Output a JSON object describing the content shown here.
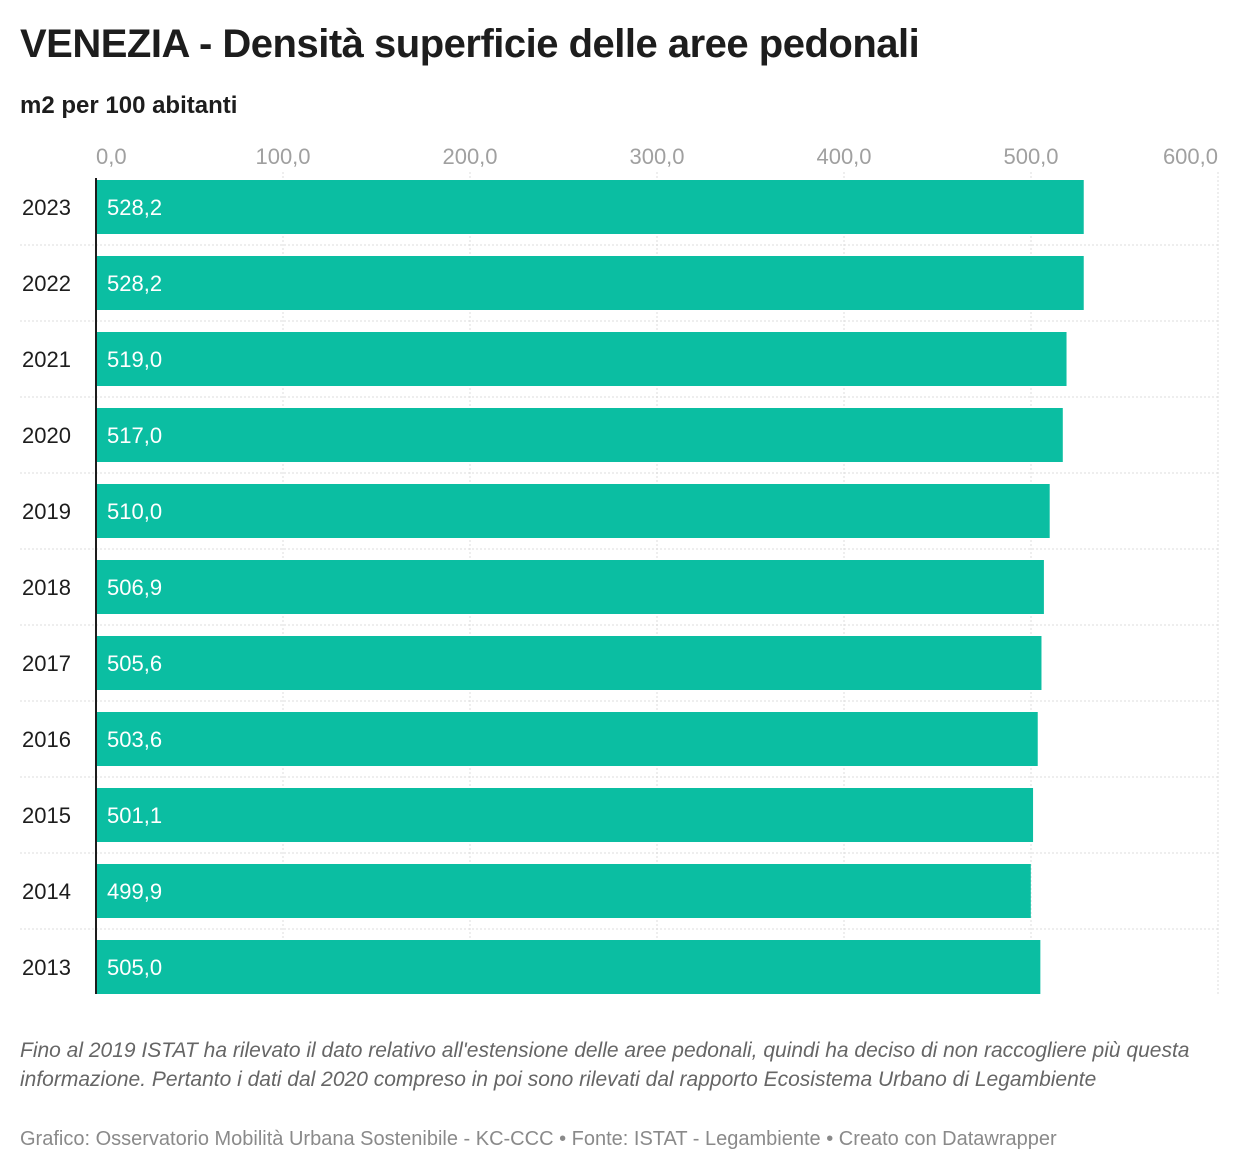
{
  "header": {
    "title": "VENEZIA - Densità superficie delle aree pedonali",
    "subtitle": "m2 per 100 abitanti"
  },
  "chart_data": {
    "type": "bar",
    "orientation": "horizontal",
    "categories": [
      "2023",
      "2022",
      "2021",
      "2020",
      "2019",
      "2018",
      "2017",
      "2016",
      "2015",
      "2014",
      "2013"
    ],
    "values": [
      528.2,
      528.2,
      519.0,
      517.0,
      510.0,
      506.9,
      505.6,
      503.6,
      501.1,
      499.9,
      505.0
    ],
    "value_labels": [
      "528,2",
      "528,2",
      "519,0",
      "517,0",
      "510,0",
      "506,9",
      "505,6",
      "503,6",
      "501,1",
      "499,9",
      "505,0"
    ],
    "x_ticks": [
      0,
      100,
      200,
      300,
      400,
      500,
      600
    ],
    "x_tick_labels": [
      "0,0",
      "100,0",
      "200,0",
      "300,0",
      "400,0",
      "500,0",
      "600,0"
    ],
    "xlim": [
      0,
      600
    ],
    "axis_position": "top",
    "grid": true,
    "bar_color": "#0bbea2"
  },
  "footer": {
    "note": "Fino al 2019 ISTAT ha rilevato il dato relativo all'estensione delle aree pedonali, quindi ha deciso di non raccogliere più questa informazione. Pertanto i dati dal 2020 compreso in poi sono rilevati dal rapporto Ecosistema Urbano di Legambiente",
    "credits": "Grafico: Osservatorio Mobilità Urbana Sostenibile - KC-CCC • Fonte: ISTAT - Legambiente • Creato con Datawrapper"
  }
}
